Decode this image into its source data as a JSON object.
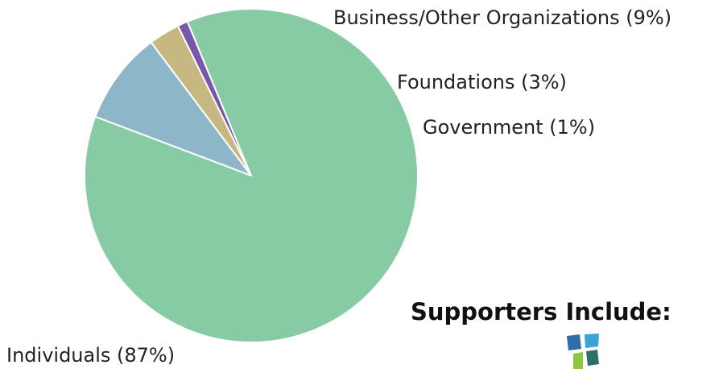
{
  "chart_data": {
    "type": "pie",
    "slices": [
      {
        "label": "Individuals (87%)",
        "value": 87,
        "color": "#86cba4"
      },
      {
        "label": "Business/Other Organizations (9%)",
        "value": 9,
        "color": "#8db7c8"
      },
      {
        "label": "Foundations (3%)",
        "value": 3,
        "color": "#c7b882"
      },
      {
        "label": "Government (1%)",
        "value": 1,
        "color": "#7757a8"
      }
    ]
  },
  "supporters": {
    "heading": "Supporters Include:",
    "logo_icon": "supporter-logo-icon",
    "logo_colors": [
      "#2f6fa8",
      "#3aa3d8",
      "#8dc63f",
      "#2e6f6a"
    ]
  }
}
